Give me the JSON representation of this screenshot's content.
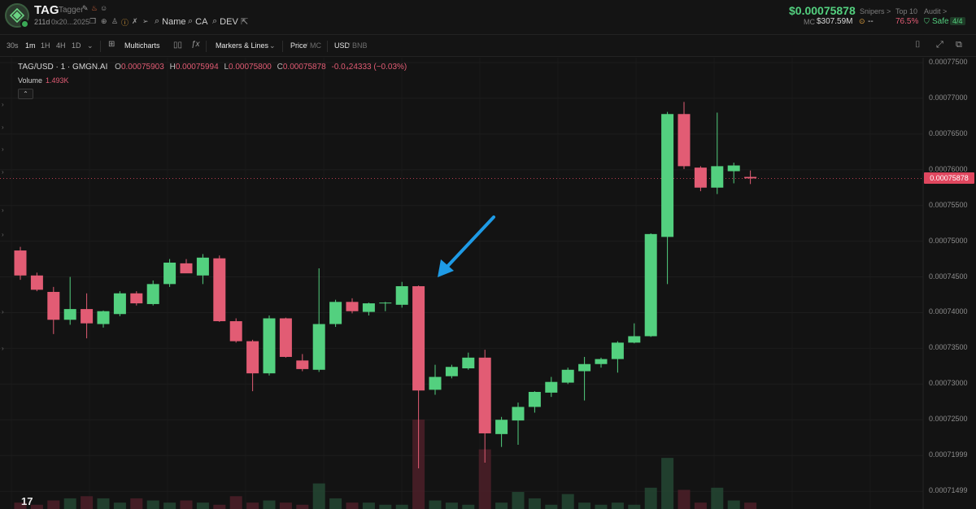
{
  "header": {
    "symbol": "TAG",
    "name": "Tagger",
    "age": "211d",
    "address": "0x20...2025",
    "links": [
      {
        "icon": "search-icon",
        "label": "Name"
      },
      {
        "icon": "search-icon",
        "label": "CA"
      },
      {
        "icon": "search-icon",
        "label": "DEV"
      }
    ],
    "price": "$0.00075878",
    "mc_label": "MC",
    "mc_value": "$307.59M",
    "snipers_label": "Snipers >",
    "snipers_value": "--",
    "top10_label": "Top 10",
    "top10_value": "76.5%",
    "audit_label": "Audit >",
    "audit_value": "Safe",
    "audit_count": "4/4",
    "colors": {
      "green": "#53d07f",
      "red": "#e25c74"
    }
  },
  "toolbar": {
    "intervals": [
      "30s",
      "1m",
      "1H",
      "4H",
      "1D"
    ],
    "active_interval": "1m",
    "multicharts": "Multicharts",
    "markers": "Markers & Lines",
    "price": "Price",
    "mc": "MC",
    "usd": "USD",
    "bnb": "BNB"
  },
  "legend": {
    "pair": "TAG/USD · 1 · GMGN.AI",
    "o_label": "O",
    "o": "0.00075903",
    "h_label": "H",
    "h": "0.00075994",
    "l_label": "L",
    "l": "0.00075800",
    "c_label": "C",
    "c": "0.00075878",
    "change": "-0.0₄24333 (−0.03%)",
    "volume_label": "Volume",
    "volume": "1.493K"
  },
  "chart_data": {
    "type": "candlestick",
    "pair": "TAG/USD",
    "interval": "1m",
    "last_price": 0.00075878,
    "ylim": [
      0.000714,
      0.000775
    ],
    "y_ticks": [
      "0.00077500",
      "0.00077000",
      "0.00076500",
      "0.00076000",
      "0.00075500",
      "0.00075000",
      "0.00074500",
      "0.00074000",
      "0.00073500",
      "0.00073000",
      "0.00072500",
      "0.00071999",
      "0.00071499"
    ],
    "candles": [
      {
        "o": 0.0007487,
        "h": 0.0007492,
        "l": 0.0007446,
        "c": 0.0007452
      },
      {
        "o": 0.0007452,
        "h": 0.0007456,
        "l": 0.000743,
        "c": 0.0007432
      },
      {
        "o": 0.0007429,
        "h": 0.0007436,
        "l": 0.000737,
        "c": 0.000739
      },
      {
        "o": 0.000739,
        "h": 0.000745,
        "l": 0.0007383,
        "c": 0.0007405
      },
      {
        "o": 0.0007405,
        "h": 0.0007427,
        "l": 0.0007364,
        "c": 0.0007385
      },
      {
        "o": 0.0007384,
        "h": 0.0007403,
        "l": 0.0007379,
        "c": 0.0007402
      },
      {
        "o": 0.0007398,
        "h": 0.000743,
        "l": 0.0007395,
        "c": 0.0007427
      },
      {
        "o": 0.0007427,
        "h": 0.000743,
        "l": 0.000741,
        "c": 0.0007413
      },
      {
        "o": 0.0007412,
        "h": 0.0007445,
        "l": 0.000741,
        "c": 0.000744
      },
      {
        "o": 0.000744,
        "h": 0.0007475,
        "l": 0.0007436,
        "c": 0.000747
      },
      {
        "o": 0.0007469,
        "h": 0.0007475,
        "l": 0.0007456,
        "c": 0.0007455
      },
      {
        "o": 0.0007452,
        "h": 0.0007482,
        "l": 0.000744,
        "c": 0.0007477
      },
      {
        "o": 0.0007476,
        "h": 0.000748,
        "l": 0.0007387,
        "c": 0.0007388
      },
      {
        "o": 0.0007388,
        "h": 0.0007392,
        "l": 0.0007358,
        "c": 0.000736
      },
      {
        "o": 0.000736,
        "h": 0.0007362,
        "l": 0.000729,
        "c": 0.0007315
      },
      {
        "o": 0.0007315,
        "h": 0.0007396,
        "l": 0.0007312,
        "c": 0.0007392
      },
      {
        "o": 0.0007392,
        "h": 0.0007393,
        "l": 0.0007337,
        "c": 0.0007338
      },
      {
        "o": 0.0007333,
        "h": 0.0007342,
        "l": 0.0007318,
        "c": 0.0007321
      },
      {
        "o": 0.000732,
        "h": 0.0007462,
        "l": 0.0007317,
        "c": 0.0007384
      },
      {
        "o": 0.0007384,
        "h": 0.0007418,
        "l": 0.000738,
        "c": 0.0007415
      },
      {
        "o": 0.0007415,
        "h": 0.000742,
        "l": 0.0007399,
        "c": 0.0007402
      },
      {
        "o": 0.0007401,
        "h": 0.0007414,
        "l": 0.0007396,
        "c": 0.0007413
      },
      {
        "o": 0.0007413,
        "h": 0.0007415,
        "l": 0.0007402,
        "c": 0.0007414
      },
      {
        "o": 0.0007411,
        "h": 0.0007443,
        "l": 0.0007407,
        "c": 0.0007437
      },
      {
        "o": 0.0007437,
        "h": 0.0007438,
        "l": 0.0007182,
        "c": 0.0007291
      },
      {
        "o": 0.0007292,
        "h": 0.0007327,
        "l": 0.0007285,
        "c": 0.000731
      },
      {
        "o": 0.0007311,
        "h": 0.0007327,
        "l": 0.0007308,
        "c": 0.0007324
      },
      {
        "o": 0.0007322,
        "h": 0.0007344,
        "l": 0.000732,
        "c": 0.0007337
      },
      {
        "o": 0.0007337,
        "h": 0.0007348,
        "l": 0.000719,
        "c": 0.0007231
      },
      {
        "o": 0.000723,
        "h": 0.0007254,
        "l": 0.0007212,
        "c": 0.000725
      },
      {
        "o": 0.0007249,
        "h": 0.0007274,
        "l": 0.0007215,
        "c": 0.0007268
      },
      {
        "o": 0.0007268,
        "h": 0.000729,
        "l": 0.000726,
        "c": 0.0007289
      },
      {
        "o": 0.0007288,
        "h": 0.000731,
        "l": 0.0007282,
        "c": 0.0007303
      },
      {
        "o": 0.0007302,
        "h": 0.0007323,
        "l": 0.00073,
        "c": 0.000732
      },
      {
        "o": 0.0007318,
        "h": 0.0007338,
        "l": 0.0007277,
        "c": 0.0007328
      },
      {
        "o": 0.0007328,
        "h": 0.0007337,
        "l": 0.0007323,
        "c": 0.0007335
      },
      {
        "o": 0.0007335,
        "h": 0.000736,
        "l": 0.0007316,
        "c": 0.0007358
      },
      {
        "o": 0.0007358,
        "h": 0.0007385,
        "l": 0.0007357,
        "c": 0.0007367
      },
      {
        "o": 0.0007367,
        "h": 0.0007511,
        "l": 0.0007366,
        "c": 0.000751
      },
      {
        "o": 0.0007506,
        "h": 0.0007681,
        "l": 0.000744,
        "c": 0.0007678
      },
      {
        "o": 0.0007678,
        "h": 0.0007695,
        "l": 0.0007601,
        "c": 0.0007605
      },
      {
        "o": 0.0007603,
        "h": 0.0007605,
        "l": 0.000757,
        "c": 0.0007575
      },
      {
        "o": 0.0007575,
        "h": 0.000768,
        "l": 0.0007566,
        "c": 0.0007605
      },
      {
        "o": 0.0007598,
        "h": 0.000761,
        "l": 0.0007581,
        "c": 0.0007606
      },
      {
        "o": 0.000759,
        "h": 0.0007599,
        "l": 0.000758,
        "c": 0.0007588
      }
    ],
    "volume": [
      0.3,
      0.2,
      0.4,
      0.5,
      0.6,
      0.5,
      0.3,
      0.5,
      0.4,
      0.3,
      0.4,
      0.3,
      0.2,
      0.6,
      0.3,
      0.4,
      0.3,
      0.2,
      1.2,
      0.5,
      0.3,
      0.3,
      0.2,
      0.2,
      4.2,
      0.4,
      0.3,
      0.2,
      2.8,
      0.3,
      0.8,
      0.5,
      0.2,
      0.7,
      0.3,
      0.2,
      0.3,
      0.2,
      1.0,
      2.4,
      0.9,
      0.3,
      1.0,
      0.4,
      0.3
    ]
  }
}
